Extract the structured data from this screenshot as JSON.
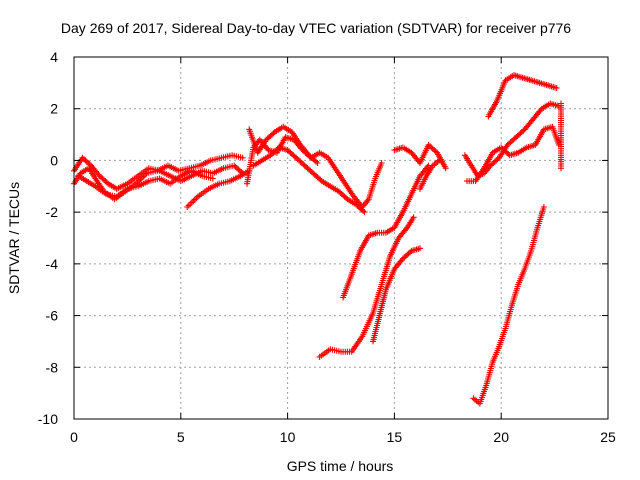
{
  "chart_data": {
    "type": "scatter",
    "title": "Day 269 of 2017, Sidereal Day-to-day VTEC variation (SDTVAR) for receiver p776",
    "xlabel": "GPS time / hours",
    "ylabel": "SDTVAR / TECUs",
    "xlim": [
      0,
      25
    ],
    "ylim": [
      -10,
      4
    ],
    "xticks": [
      0,
      5,
      10,
      15,
      20,
      25
    ],
    "yticks": [
      -10,
      -8,
      -6,
      -4,
      -2,
      0,
      2,
      4
    ],
    "grid": true,
    "legend": "none",
    "marker": "+",
    "colors": {
      "series": "#ff0000",
      "grid": "#a0a0a0",
      "axis": "#000000"
    },
    "series": [
      {
        "segments": [
          [
            [
              0.0,
              -0.9
            ],
            [
              0.3,
              -0.5
            ],
            [
              0.7,
              -0.3
            ],
            [
              1.0,
              -0.7
            ],
            [
              1.4,
              -1.2
            ],
            [
              1.9,
              -1.5
            ],
            [
              2.4,
              -1.2
            ],
            [
              2.9,
              -0.9
            ],
            [
              3.4,
              -0.5
            ],
            [
              3.9,
              -0.4
            ],
            [
              4.4,
              -0.2
            ],
            [
              4.9,
              -0.4
            ],
            [
              5.4,
              -0.3
            ],
            [
              5.9,
              -0.2
            ],
            [
              6.4,
              0.0
            ],
            [
              6.9,
              0.1
            ],
            [
              7.4,
              0.2
            ],
            [
              7.9,
              0.1
            ]
          ],
          [
            [
              0.0,
              -0.4
            ],
            [
              0.4,
              0.1
            ],
            [
              0.8,
              -0.2
            ],
            [
              1.2,
              -0.6
            ],
            [
              1.6,
              -0.9
            ],
            [
              2.0,
              -1.1
            ],
            [
              2.5,
              -0.9
            ],
            [
              3.0,
              -0.6
            ],
            [
              3.5,
              -0.3
            ],
            [
              4.0,
              -0.4
            ],
            [
              4.5,
              -0.6
            ],
            [
              5.0,
              -0.8
            ],
            [
              5.5,
              -0.6
            ],
            [
              6.0,
              -0.4
            ],
            [
              6.5,
              -0.5
            ],
            [
              7.0,
              -0.3
            ],
            [
              7.5,
              -0.2
            ],
            [
              7.9,
              -0.5
            ]
          ],
          [
            [
              0.2,
              -0.6
            ],
            [
              0.6,
              -0.8
            ],
            [
              1.0,
              -1.0
            ],
            [
              1.5,
              -1.3
            ],
            [
              2.0,
              -1.4
            ],
            [
              2.5,
              -1.1
            ],
            [
              3.0,
              -1.0
            ],
            [
              3.5,
              -0.8
            ],
            [
              4.0,
              -0.7
            ],
            [
              4.5,
              -0.9
            ],
            [
              5.0,
              -0.6
            ],
            [
              5.5,
              -0.4
            ],
            [
              6.0,
              -0.6
            ],
            [
              6.5,
              -0.7
            ]
          ],
          [
            [
              5.3,
              -1.8
            ],
            [
              5.8,
              -1.4
            ],
            [
              6.3,
              -1.1
            ],
            [
              6.8,
              -0.9
            ],
            [
              7.3,
              -0.8
            ],
            [
              7.8,
              -0.6
            ],
            [
              8.2,
              -0.4
            ]
          ],
          [
            [
              8.1,
              -0.9
            ],
            [
              8.4,
              0.5
            ],
            [
              8.7,
              0.8
            ],
            [
              9.1,
              0.4
            ],
            [
              9.5,
              0.3
            ],
            [
              9.9,
              0.9
            ],
            [
              10.3,
              0.8
            ],
            [
              10.7,
              0.4
            ],
            [
              11.1,
              0.1
            ],
            [
              11.5,
              0.3
            ],
            [
              11.9,
              0.1
            ],
            [
              12.3,
              -0.4
            ],
            [
              12.7,
              -0.9
            ],
            [
              13.1,
              -1.4
            ],
            [
              13.5,
              -1.8
            ],
            [
              13.8,
              -1.5
            ],
            [
              14.1,
              -0.7
            ],
            [
              14.4,
              -0.1
            ]
          ],
          [
            [
              8.2,
              1.2
            ],
            [
              8.6,
              0.3
            ],
            [
              9.0,
              0.8
            ],
            [
              9.4,
              1.1
            ],
            [
              9.8,
              1.3
            ],
            [
              10.2,
              1.1
            ],
            [
              10.6,
              0.6
            ],
            [
              11.0,
              0.2
            ],
            [
              11.4,
              -0.1
            ]
          ],
          [
            [
              8.4,
              -0.2
            ],
            [
              8.8,
              0.0
            ],
            [
              9.2,
              0.2
            ],
            [
              9.6,
              0.5
            ],
            [
              10.0,
              0.4
            ],
            [
              10.4,
              0.1
            ],
            [
              10.8,
              -0.2
            ],
            [
              11.2,
              -0.5
            ],
            [
              11.6,
              -0.8
            ],
            [
              12.0,
              -1.0
            ],
            [
              12.4,
              -1.2
            ],
            [
              12.8,
              -1.5
            ],
            [
              13.2,
              -1.7
            ],
            [
              13.6,
              -2.0
            ]
          ],
          [
            [
              11.5,
              -7.6
            ],
            [
              12.0,
              -7.3
            ],
            [
              12.5,
              -7.4
            ],
            [
              13.0,
              -7.4
            ],
            [
              13.5,
              -6.8
            ],
            [
              14.0,
              -5.9
            ],
            [
              14.4,
              -4.8
            ],
            [
              14.8,
              -3.7
            ],
            [
              15.2,
              -3.0
            ],
            [
              15.6,
              -2.6
            ],
            [
              15.9,
              -2.2
            ]
          ],
          [
            [
              12.6,
              -5.3
            ],
            [
              13.0,
              -4.4
            ],
            [
              13.4,
              -3.5
            ],
            [
              13.8,
              -2.9
            ],
            [
              14.2,
              -2.8
            ],
            [
              14.6,
              -2.8
            ],
            [
              15.0,
              -2.6
            ],
            [
              15.4,
              -2.0
            ],
            [
              15.8,
              -1.3
            ],
            [
              16.2,
              -0.6
            ],
            [
              16.6,
              -0.2
            ]
          ],
          [
            [
              14.0,
              -7.0
            ],
            [
              14.3,
              -6.0
            ],
            [
              14.6,
              -5.0
            ],
            [
              15.0,
              -4.2
            ],
            [
              15.4,
              -3.8
            ],
            [
              15.8,
              -3.5
            ],
            [
              16.2,
              -3.4
            ]
          ],
          [
            [
              15.0,
              0.4
            ],
            [
              15.4,
              0.5
            ],
            [
              15.8,
              0.3
            ],
            [
              16.2,
              -0.1
            ],
            [
              16.6,
              0.6
            ],
            [
              17.0,
              0.3
            ],
            [
              17.4,
              -0.3
            ]
          ],
          [
            [
              16.2,
              -1.1
            ],
            [
              16.5,
              -0.6
            ],
            [
              16.8,
              -0.2
            ],
            [
              17.1,
              0.0
            ]
          ],
          [
            [
              18.3,
              0.2
            ],
            [
              18.6,
              -0.2
            ],
            [
              18.9,
              -0.6
            ],
            [
              19.2,
              -0.5
            ],
            [
              19.5,
              -0.2
            ],
            [
              19.9,
              0.1
            ],
            [
              20.3,
              0.6
            ],
            [
              20.7,
              0.9
            ],
            [
              21.1,
              1.2
            ],
            [
              21.5,
              1.6
            ],
            [
              21.9,
              2.0
            ],
            [
              22.3,
              2.2
            ],
            [
              22.7,
              2.1
            ]
          ],
          [
            [
              18.4,
              -0.8
            ],
            [
              18.8,
              -0.8
            ],
            [
              19.2,
              -0.3
            ],
            [
              19.6,
              0.3
            ],
            [
              20.0,
              0.5
            ],
            [
              20.4,
              0.2
            ],
            [
              20.8,
              0.3
            ],
            [
              21.2,
              0.5
            ],
            [
              21.6,
              0.6
            ],
            [
              22.0,
              1.2
            ],
            [
              22.4,
              1.3
            ],
            [
              22.7,
              0.6
            ]
          ],
          [
            [
              19.4,
              1.7
            ],
            [
              19.8,
              2.3
            ],
            [
              20.2,
              3.1
            ],
            [
              20.6,
              3.3
            ],
            [
              21.0,
              3.2
            ],
            [
              21.4,
              3.1
            ],
            [
              21.8,
              3.0
            ],
            [
              22.2,
              2.9
            ],
            [
              22.6,
              2.8
            ]
          ],
          [
            [
              18.7,
              -9.2
            ],
            [
              19.0,
              -9.4
            ],
            [
              19.3,
              -8.7
            ],
            [
              19.6,
              -7.8
            ],
            [
              19.9,
              -7.2
            ],
            [
              20.2,
              -6.5
            ],
            [
              20.5,
              -5.6
            ],
            [
              20.8,
              -4.8
            ],
            [
              21.1,
              -4.2
            ],
            [
              21.4,
              -3.5
            ],
            [
              21.7,
              -2.6
            ],
            [
              22.0,
              -1.8
            ]
          ],
          [
            [
              22.8,
              2.2
            ],
            [
              22.8,
              1.3
            ],
            [
              22.8,
              0.2
            ],
            [
              22.8,
              -0.3
            ]
          ]
        ]
      }
    ]
  }
}
